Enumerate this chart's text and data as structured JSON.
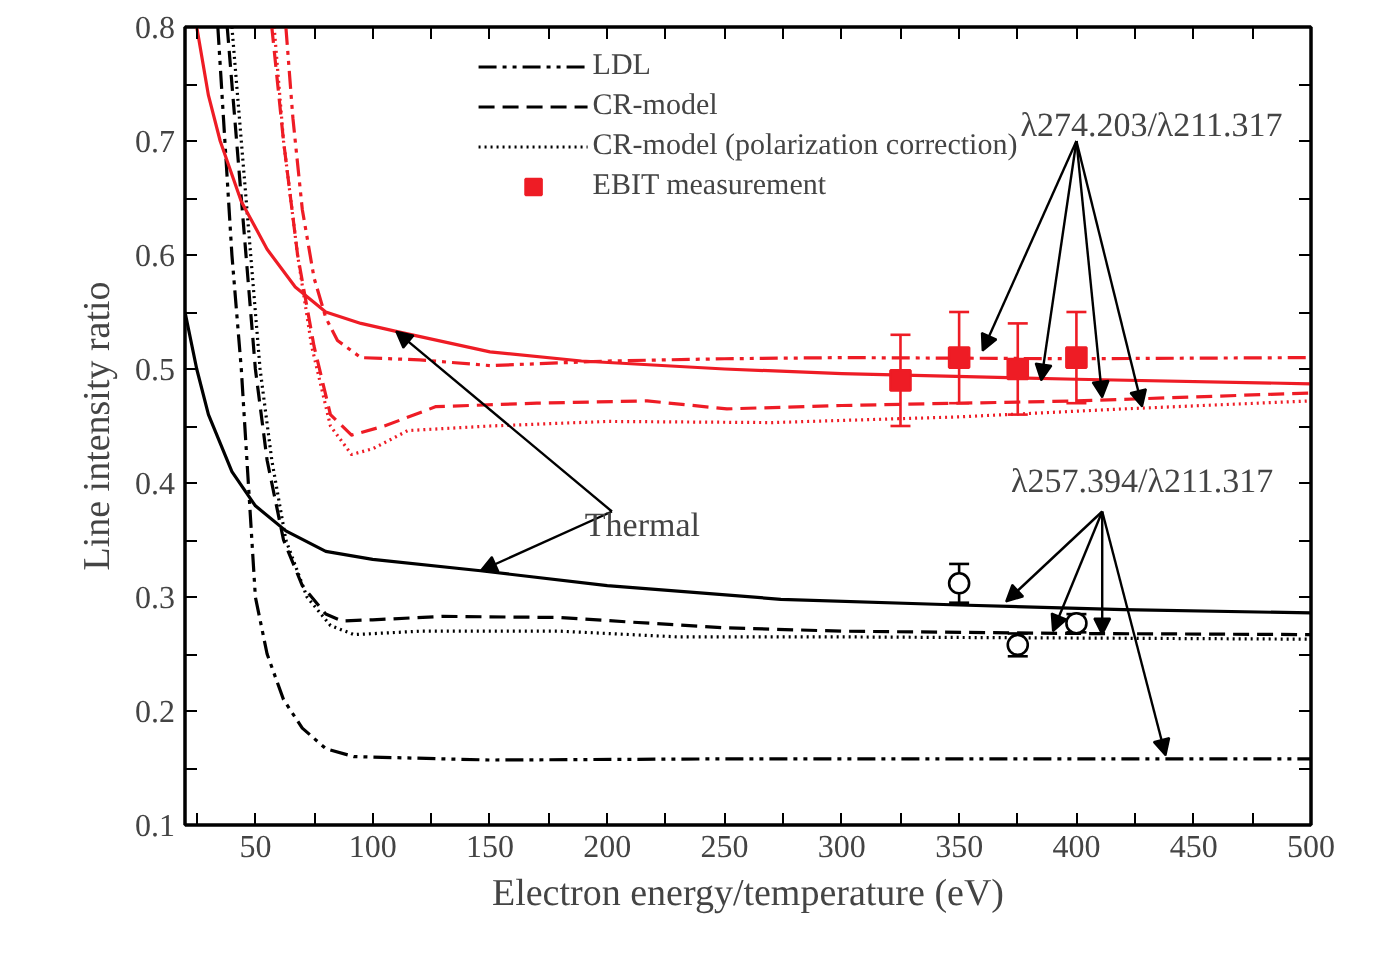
{
  "chart_data": {
    "type": "line",
    "xlabel": "Electron energy/temperature (eV)",
    "ylabel": "Line intensity ratio",
    "xlim": [
      20,
      500
    ],
    "ylim": [
      0.1,
      0.8
    ],
    "xticks": [
      {
        "value": 25,
        "label": null
      },
      50,
      {
        "value": 75,
        "label": null
      },
      100,
      {
        "value": 125,
        "label": null
      },
      150,
      {
        "value": 175,
        "label": null
      },
      200,
      {
        "value": 225,
        "label": null
      },
      250,
      {
        "value": 275,
        "label": null
      },
      300,
      {
        "value": 325,
        "label": null
      },
      350,
      {
        "value": 375,
        "label": null
      },
      400,
      {
        "value": 425,
        "label": null
      },
      450,
      {
        "value": 475,
        "label": null
      },
      500
    ],
    "yticks": [
      0.1,
      {
        "value": 0.15,
        "label": null
      },
      0.2,
      {
        "value": 0.25,
        "label": null
      },
      0.3,
      {
        "value": 0.35,
        "label": null
      },
      0.4,
      {
        "value": 0.45,
        "label": null
      },
      0.5,
      {
        "value": 0.55,
        "label": null
      },
      0.6,
      {
        "value": 0.65,
        "label": null
      },
      0.7,
      {
        "value": 0.75,
        "label": null
      },
      0.8
    ],
    "grid": false,
    "legend": "top",
    "series": [
      {
        "name": "LDL",
        "line_style": "dashdot",
        "color": "#000000",
        "x": [
          34,
          37,
          40,
          44,
          47,
          50,
          55,
          62,
          70,
          80,
          92,
          150,
          250,
          350,
          500
        ],
        "values": [
          0.8,
          0.7,
          0.6,
          0.5,
          0.4,
          0.3,
          0.25,
          0.21,
          0.185,
          0.167,
          0.16,
          0.157,
          0.158,
          0.158,
          0.158
        ]
      },
      {
        "name": "CR-model",
        "line_style": "dashed",
        "color": "#000000",
        "x": [
          38,
          42,
          46,
          50,
          55,
          62,
          70,
          80,
          87,
          100,
          130,
          180,
          210,
          250,
          300,
          400,
          500
        ],
        "values": [
          0.8,
          0.7,
          0.6,
          0.5,
          0.42,
          0.35,
          0.31,
          0.285,
          0.279,
          0.28,
          0.283,
          0.282,
          0.278,
          0.273,
          0.27,
          0.268,
          0.267
        ]
      },
      {
        "name": "CR-model (polarization correction)",
        "line_style": "dotted",
        "color": "#000000",
        "x": [
          40,
          44,
          48,
          52,
          57,
          63,
          72,
          82,
          92,
          120,
          180,
          230,
          300,
          400,
          500
        ],
        "values": [
          0.8,
          0.7,
          0.6,
          0.5,
          0.42,
          0.35,
          0.3,
          0.275,
          0.267,
          0.27,
          0.27,
          0.265,
          0.265,
          0.264,
          0.263
        ]
      },
      {
        "line_style": "solid",
        "color": "#000000",
        "x": [
          20,
          25,
          30,
          40,
          50,
          63,
          80,
          100,
          146,
          200,
          274,
          350,
          420,
          500
        ],
        "values": [
          0.55,
          0.5,
          0.46,
          0.41,
          0.38,
          0.358,
          0.34,
          0.333,
          0.323,
          0.31,
          0.298,
          0.293,
          0.289,
          0.286
        ]
      },
      {
        "line_style": "dashdot",
        "color": "#ee1c25",
        "x": [
          63,
          66,
          70,
          75,
          80,
          85,
          95,
          120,
          150,
          200,
          250,
          300,
          400,
          500
        ],
        "values": [
          0.8,
          0.72,
          0.64,
          0.58,
          0.545,
          0.525,
          0.51,
          0.508,
          0.503,
          0.507,
          0.509,
          0.51,
          0.509,
          0.51
        ]
      },
      {
        "line_style": "dashed",
        "color": "#ee1c25",
        "x": [
          57,
          62,
          68,
          75,
          82,
          91,
          105,
          127,
          170,
          217,
          251,
          300,
          400,
          500
        ],
        "values": [
          0.8,
          0.7,
          0.6,
          0.52,
          0.46,
          0.442,
          0.45,
          0.467,
          0.47,
          0.472,
          0.465,
          0.468,
          0.472,
          0.479
        ]
      },
      {
        "line_style": "dotted",
        "color": "#ee1c25",
        "x": [
          58,
          62,
          68,
          74,
          82,
          91,
          100,
          115,
          150,
          200,
          270,
          350,
          420,
          500
        ],
        "values": [
          0.8,
          0.7,
          0.6,
          0.52,
          0.45,
          0.425,
          0.43,
          0.446,
          0.45,
          0.454,
          0.453,
          0.458,
          0.465,
          0.472
        ]
      },
      {
        "line_style": "solid",
        "color": "#ee1c25",
        "x": [
          25,
          30,
          35,
          44,
          55,
          67,
          80,
          95,
          110,
          150,
          189,
          250,
          300,
          400,
          500
        ],
        "values": [
          0.8,
          0.74,
          0.7,
          0.647,
          0.605,
          0.572,
          0.55,
          0.54,
          0.533,
          0.515,
          0.507,
          0.5,
          0.496,
          0.491,
          0.487
        ]
      },
      {
        "name": "EBIT measurement",
        "type": "scatter",
        "marker": "square",
        "color": "#ee1c25",
        "x": [
          325,
          350,
          375,
          400
        ],
        "values": [
          0.49,
          0.51,
          0.5,
          0.51
        ],
        "errors": [
          0.04,
          0.04,
          0.04,
          0.04
        ]
      },
      {
        "type": "scatter",
        "marker": "circle",
        "color": "#000000",
        "x": [
          350,
          375,
          400
        ],
        "values": [
          0.312,
          0.258,
          0.277
        ],
        "errors": [
          0.017,
          0.01,
          0.008
        ]
      }
    ],
    "annotations": [
      {
        "text": "Thermal",
        "x": 110,
        "y": 0.533
      },
      {
        "text": "λ274.203/λ211.317",
        "x": 360,
        "y": 0.516
      },
      {
        "text": "λ257.394/λ211.317",
        "x": 370,
        "y": 0.296
      }
    ]
  }
}
